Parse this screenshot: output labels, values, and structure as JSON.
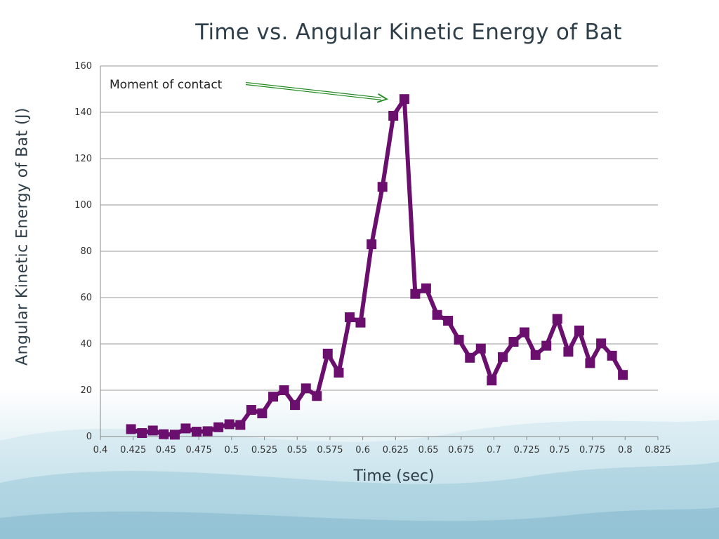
{
  "chart_data": {
    "type": "line",
    "title": "Time vs. Angular Kinetic Energy of  Bat",
    "xlabel": "Time (sec)",
    "ylabel": "Angular Kinetic Energy of  Bat (J)",
    "xlim": [
      0.4,
      0.825
    ],
    "ylim": [
      0,
      160
    ],
    "x_ticks": [
      "0.4",
      "0.425",
      "0.45",
      "0.475",
      "0.5",
      "0.525",
      "0.55",
      "0.575",
      "0.6",
      "0.625",
      "0.65",
      "0.675",
      "0.7",
      "0.725",
      "0.75",
      "0.775",
      "0.8",
      "0.825"
    ],
    "y_ticks": [
      "0",
      "20",
      "40",
      "60",
      "80",
      "100",
      "120",
      "140",
      "160"
    ],
    "grid": "horizontal",
    "series_color": "#6a0f6e",
    "annotation": {
      "text": "Moment of  contact",
      "arrow_color": "#1f8a1f",
      "target": [
        0.6333,
        146
      ]
    },
    "x": [
      0.4233,
      0.4317,
      0.44,
      0.4483,
      0.4567,
      0.465,
      0.4733,
      0.4817,
      0.49,
      0.4983,
      0.5067,
      0.515,
      0.5233,
      0.5317,
      0.54,
      0.5483,
      0.5567,
      0.565,
      0.5733,
      0.5817,
      0.59,
      0.5983,
      0.6067,
      0.615,
      0.6233,
      0.6317,
      0.64,
      0.6483,
      0.6567,
      0.665,
      0.6733,
      0.6817,
      0.69,
      0.6983,
      0.7067,
      0.715,
      0.7233,
      0.7317,
      0.74,
      0.7483,
      0.7567,
      0.765,
      0.7733,
      0.7817,
      0.79,
      0.7983
    ],
    "values": [
      3.2,
      1.5,
      2.6,
      1.0,
      0.8,
      3.5,
      2.1,
      2.3,
      4.0,
      5.3,
      5.0,
      11.5,
      10.0,
      17.2,
      20.0,
      13.6,
      20.8,
      17.5,
      35.8,
      27.6,
      51.5,
      49.2,
      83.0,
      107.8,
      138.5,
      145.7,
      61.6,
      64.0,
      52.5,
      50.0,
      41.8,
      34.0,
      38.0,
      24.2,
      34.3,
      40.9,
      45.0,
      35.2,
      39.2,
      50.8,
      36.6,
      45.8,
      31.7,
      40.2,
      34.9,
      26.6
    ]
  }
}
